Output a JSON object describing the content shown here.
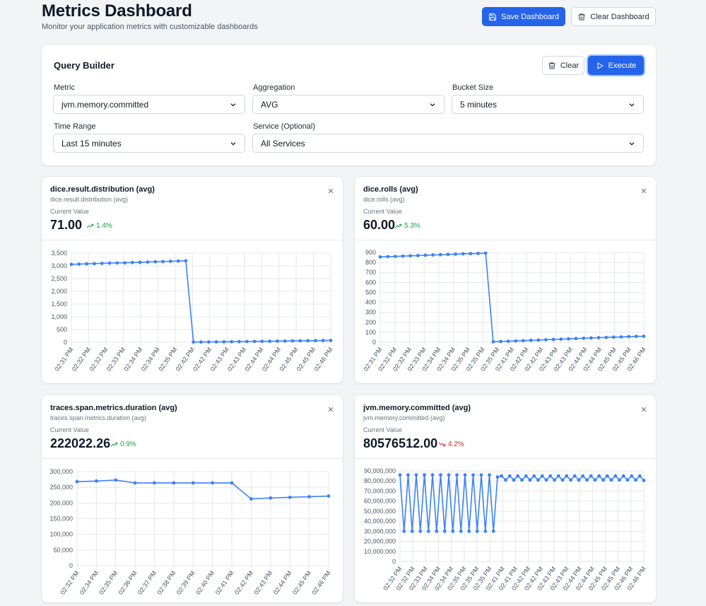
{
  "header": {
    "title": "Metrics Dashboard",
    "subtitle": "Monitor your application metrics with customizable dashboards",
    "save_label": "Save Dashboard",
    "clear_label": "Clear Dashboard"
  },
  "query_builder": {
    "title": "Query Builder",
    "clear_label": "Clear",
    "execute_label": "Execute",
    "metric_label": "Metric",
    "metric_value": "jvm.memory.committed",
    "aggregation_label": "Aggregation",
    "aggregation_value": "AVG",
    "bucket_label": "Bucket Size",
    "bucket_value": "5 minutes",
    "time_label": "Time Range",
    "time_value": "Last 15 minutes",
    "service_label": "Service (Optional)",
    "service_value": "All Services"
  },
  "colors": {
    "accent": "#2563eb",
    "line": "#3b82f6",
    "up": "#16a34a",
    "down": "#dc2626"
  },
  "cards": [
    {
      "title": "dice.result.distribution (avg)",
      "subtitle": "dice.result.distribution (avg)",
      "current_label": "Current Value",
      "value": "71.00",
      "change": "1.4%",
      "trend": "up"
    },
    {
      "title": "dice.rolls (avg)",
      "subtitle": "dice.rolls (avg)",
      "current_label": "Current Value",
      "value": "60.00",
      "change": "5.3%",
      "trend": "up"
    },
    {
      "title": "traces.span.metrics.duration (avg)",
      "subtitle": "traces.span.metrics.duration (avg)",
      "current_label": "Current Value",
      "value": "222022.26",
      "change": "0.9%",
      "trend": "up"
    },
    {
      "title": "jvm.memory.committed (avg)",
      "subtitle": "jvm.memory.committed (avg)",
      "current_label": "Current Value",
      "value": "80576512.00",
      "change": "4.2%",
      "trend": "down"
    }
  ],
  "chart_data": [
    {
      "type": "line",
      "xticks": [
        "02:31 PM",
        "02:32 PM",
        "02:32 PM",
        "02:33 PM",
        "02:34 PM",
        "02:34 PM",
        "02:35 PM",
        "02:42 PM",
        "02:42 PM",
        "02:43 PM",
        "02:43 PM",
        "02:44 PM",
        "02:44 PM",
        "02:45 PM",
        "02:45 PM",
        "02:46 PM"
      ],
      "ylim": [
        0,
        3500
      ],
      "yticks": [
        "0",
        "500",
        "1,000",
        "1,500",
        "2,000",
        "2,500",
        "3,000",
        "3,500"
      ],
      "ytick_values": [
        0,
        500,
        1000,
        1500,
        2000,
        2500,
        3000,
        3500
      ],
      "values": [
        3060,
        3070,
        3080,
        3090,
        3100,
        3110,
        3115,
        3120,
        3130,
        3140,
        3150,
        3160,
        3170,
        3180,
        3190,
        3200,
        10,
        10,
        12,
        14,
        16,
        20,
        24,
        28,
        32,
        36,
        40,
        44,
        48,
        52,
        56,
        60,
        64,
        68,
        70
      ]
    },
    {
      "type": "line",
      "xticks": [
        "02:31 PM",
        "02:32 PM",
        "02:32 PM",
        "02:33 PM",
        "02:34 PM",
        "02:34 PM",
        "02:35 PM",
        "02:35 PM",
        "02:35 PM",
        "02:41 PM",
        "02:42 PM",
        "02:42 PM",
        "02:43 PM",
        "02:43 PM",
        "02:44 PM",
        "02:44 PM",
        "02:45 PM",
        "02:45 PM",
        "02:46 PM"
      ],
      "ylim": [
        0,
        900
      ],
      "yticks": [
        "0",
        "100",
        "200",
        "300",
        "400",
        "500",
        "600",
        "700",
        "800",
        "900"
      ],
      "ytick_values": [
        0,
        100,
        200,
        300,
        400,
        500,
        600,
        700,
        800,
        900
      ],
      "values": [
        855,
        858,
        860,
        863,
        866,
        869,
        872,
        875,
        877,
        880,
        883,
        886,
        888,
        890,
        893,
        5,
        8,
        10,
        13,
        16,
        19,
        22,
        25,
        28,
        31,
        34,
        37,
        40,
        43,
        46,
        48,
        51,
        53,
        56,
        59,
        60
      ]
    },
    {
      "type": "line",
      "xticks": [
        "02:32 PM",
        "02:34 PM",
        "02:35 PM",
        "02:36 PM",
        "02:37 PM",
        "02:38 PM",
        "02:39 PM",
        "02:40 PM",
        "02:41 PM",
        "02:42 PM",
        "02:43 PM",
        "02:44 PM",
        "02:45 PM",
        "02:46 PM"
      ],
      "ylim": [
        0,
        300000
      ],
      "yticks": [
        "0",
        "50,000",
        "100,000",
        "150,000",
        "200,000",
        "250,000",
        "300,000"
      ],
      "ytick_values": [
        0,
        50000,
        100000,
        150000,
        200000,
        250000,
        300000
      ],
      "values": [
        268000,
        270000,
        273000,
        264000,
        264000,
        264000,
        264000,
        264000,
        264000,
        213000,
        216000,
        218000,
        220000,
        222000
      ]
    },
    {
      "type": "line",
      "xticks": [
        "02:32 PM",
        "02:32 PM",
        "02:33 PM",
        "02:34 PM",
        "02:34 PM",
        "02:35 PM",
        "02:35 PM",
        "02:35 PM",
        "02:41 PM",
        "02:41 PM",
        "02:42 PM",
        "02:42 PM",
        "02:43 PM",
        "02:43 PM",
        "02:44 PM",
        "02:44 PM",
        "02:45 PM",
        "02:45 PM",
        "02:46 PM",
        "02:46 PM"
      ],
      "ylim": [
        0,
        90000000
      ],
      "yticks": [
        "0",
        "10,000,000",
        "20,000,000",
        "30,000,000",
        "40,000,000",
        "50,000,000",
        "60,000,000",
        "70,000,000",
        "80,000,000",
        "90,000,000"
      ],
      "ytick_values": [
        0,
        10000000,
        20000000,
        30000000,
        40000000,
        50000000,
        60000000,
        70000000,
        80000000,
        90000000
      ],
      "values": [
        86000000,
        30000000,
        86000000,
        30000000,
        86000000,
        30000000,
        86000000,
        30000000,
        86000000,
        30000000,
        86000000,
        30000000,
        86000000,
        30000000,
        86000000,
        30000000,
        86000000,
        30000000,
        86000000,
        30000000,
        86000000,
        30000000,
        86000000,
        30000000,
        84000000,
        85000000,
        81000000,
        85000000,
        81000000,
        85000000,
        81000000,
        85000000,
        81000000,
        85000000,
        81000000,
        85000000,
        81000000,
        85000000,
        81000000,
        85000000,
        81000000,
        85000000,
        81000000,
        85000000,
        81000000,
        85000000,
        81000000,
        85000000,
        81000000,
        85000000,
        81000000,
        85000000,
        81000000,
        85000000,
        81000000,
        85000000,
        81000000,
        85000000,
        81000000,
        85000000,
        80600000
      ]
    }
  ]
}
